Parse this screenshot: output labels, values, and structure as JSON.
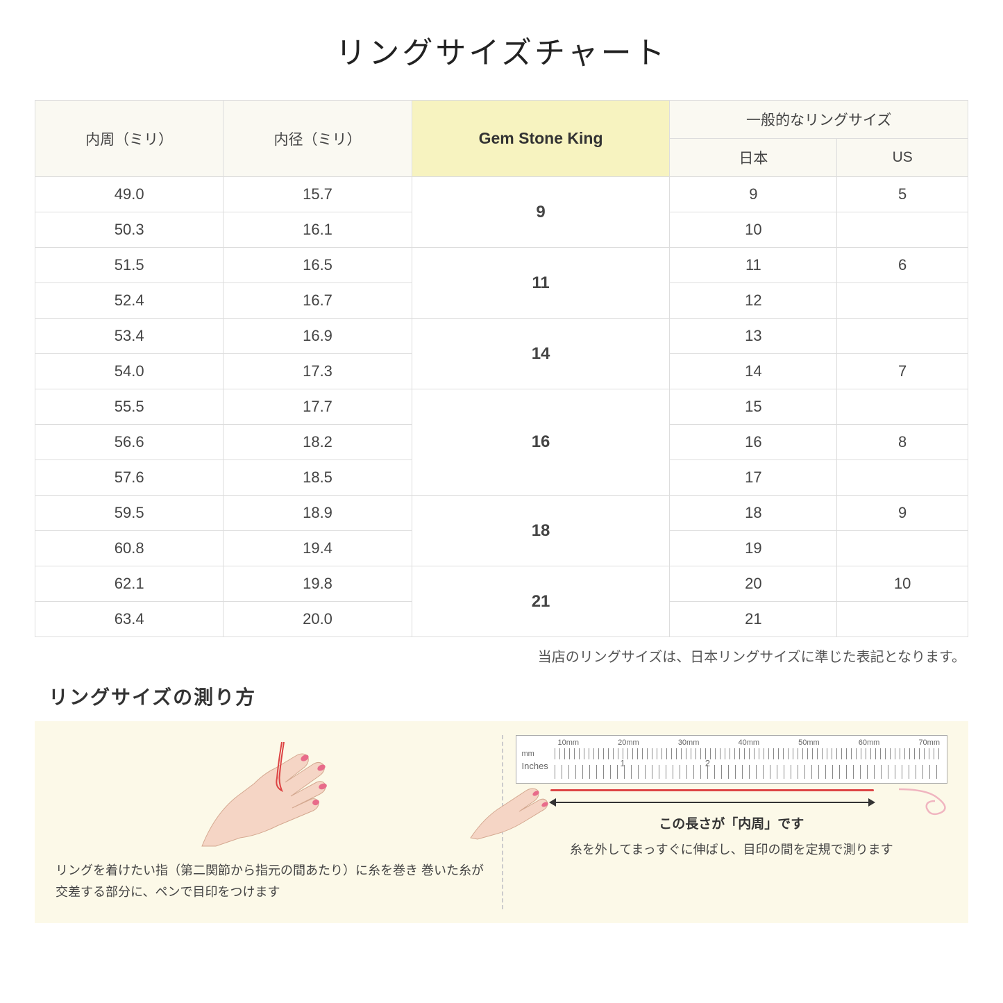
{
  "title": "リングサイズチャート",
  "headers": {
    "circumference": "内周（ミリ）",
    "diameter": "内径（ミリ）",
    "gsk": "Gem Stone King",
    "general": "一般的なリングサイズ",
    "japan": "日本",
    "us": "US"
  },
  "note": "当店のリングサイズは、日本リングサイズに準じた表記となります。",
  "measure_title": "リングサイズの測り方",
  "left_instruction": "リングを着けたい指（第二関節から指元の間あたり）に糸を巻き\n巻いた糸が交差する部分に、ペンで目印をつけます",
  "right_instruction": "糸を外してまっすぐに伸ばし、目印の間を定規で測ります",
  "arrow_caption": "この長さが「内周」です",
  "ruler": {
    "mm_label": "mm",
    "in_label": "Inches",
    "mm_marks": [
      "10mm",
      "20mm",
      "30mm",
      "40mm",
      "50mm",
      "60mm",
      "70mm"
    ],
    "in_marks": [
      "1",
      "2"
    ]
  },
  "groups": [
    {
      "gsk": "9",
      "rows": [
        {
          "c": "49.0",
          "d": "15.7",
          "jp": "9",
          "us": "5"
        },
        {
          "c": "50.3",
          "d": "16.1",
          "jp": "10",
          "us": ""
        }
      ]
    },
    {
      "gsk": "11",
      "rows": [
        {
          "c": "51.5",
          "d": "16.5",
          "jp": "11",
          "us": "6"
        },
        {
          "c": "52.4",
          "d": "16.7",
          "jp": "12",
          "us": ""
        }
      ]
    },
    {
      "gsk": "14",
      "rows": [
        {
          "c": "53.4",
          "d": "16.9",
          "jp": "13",
          "us": ""
        },
        {
          "c": "54.0",
          "d": "17.3",
          "jp": "14",
          "us": "7"
        }
      ]
    },
    {
      "gsk": "16",
      "rows": [
        {
          "c": "55.5",
          "d": "17.7",
          "jp": "15",
          "us": ""
        },
        {
          "c": "56.6",
          "d": "18.2",
          "jp": "16",
          "us": "8"
        },
        {
          "c": "57.6",
          "d": "18.5",
          "jp": "17",
          "us": ""
        }
      ]
    },
    {
      "gsk": "18",
      "rows": [
        {
          "c": "59.5",
          "d": "18.9",
          "jp": "18",
          "us": "9"
        },
        {
          "c": "60.8",
          "d": "19.4",
          "jp": "19",
          "us": ""
        }
      ]
    },
    {
      "gsk": "21",
      "rows": [
        {
          "c": "62.1",
          "d": "19.8",
          "jp": "20",
          "us": "10"
        },
        {
          "c": "63.4",
          "d": "20.0",
          "jp": "21",
          "us": ""
        }
      ]
    }
  ],
  "colors": {
    "header_bg": "#faf9f2",
    "gsk_bg": "#f7f3c0",
    "border": "#dddddd",
    "panel_bg": "#fcf9e8",
    "thread": "#dd4444",
    "skin": "#f5d5c5",
    "nail": "#e86b8a"
  }
}
